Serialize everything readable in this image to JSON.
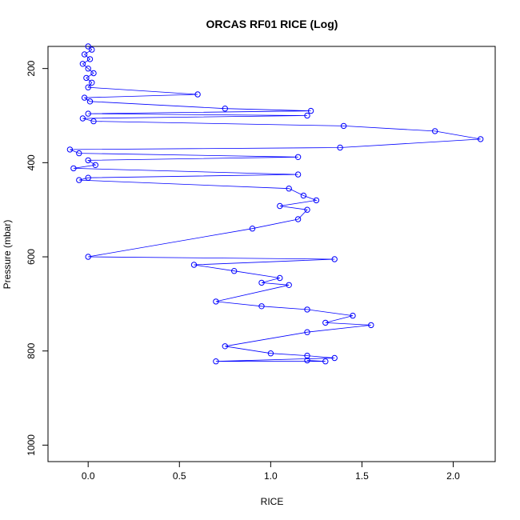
{
  "chart_data": {
    "type": "scatter",
    "title": "ORCAS RF01 RICE (Log)",
    "xlabel": "RICE",
    "ylabel": "Pressure (mbar)",
    "xlim": [
      -0.22,
      2.23
    ],
    "ylim": [
      1035,
      153
    ],
    "y_reversed": true,
    "x_ticks": [
      0.0,
      0.5,
      1.0,
      1.5,
      2.0
    ],
    "x_tick_labels": [
      "0.0",
      "0.5",
      "1.0",
      "1.5",
      "2.0"
    ],
    "y_ticks": [
      200,
      400,
      600,
      800,
      1000
    ],
    "y_tick_labels": [
      "200",
      "400",
      "600",
      "800",
      "1000"
    ],
    "grid": false,
    "legend": "none",
    "marker": "open-circle",
    "line_style": "overplotted line and points",
    "color": "#0000ff",
    "series": [
      {
        "values": [
          [
            0.0,
            153
          ],
          [
            0.02,
            160
          ],
          [
            -0.02,
            170
          ],
          [
            0.01,
            180
          ],
          [
            -0.03,
            190
          ],
          [
            0.0,
            200
          ],
          [
            0.03,
            210
          ],
          [
            -0.01,
            220
          ],
          [
            0.02,
            230
          ],
          [
            0.0,
            240
          ],
          [
            0.6,
            255
          ],
          [
            -0.02,
            262
          ],
          [
            0.01,
            270
          ],
          [
            0.75,
            285
          ],
          [
            1.22,
            290
          ],
          [
            0.0,
            296
          ],
          [
            1.2,
            300
          ],
          [
            -0.03,
            306
          ],
          [
            0.03,
            312
          ],
          [
            1.4,
            322
          ],
          [
            1.9,
            333
          ],
          [
            2.15,
            350
          ],
          [
            1.38,
            368
          ],
          [
            -0.1,
            372
          ],
          [
            -0.05,
            380
          ],
          [
            1.15,
            388
          ],
          [
            0.0,
            395
          ],
          [
            0.04,
            405
          ],
          [
            -0.08,
            412
          ],
          [
            1.15,
            425
          ],
          [
            0.0,
            432
          ],
          [
            -0.05,
            437
          ],
          [
            1.1,
            455
          ],
          [
            1.18,
            470
          ],
          [
            1.25,
            480
          ],
          [
            1.05,
            492
          ],
          [
            1.2,
            500
          ],
          [
            1.15,
            520
          ],
          [
            0.9,
            540
          ],
          [
            0.0,
            600
          ],
          [
            1.35,
            605
          ],
          [
            0.58,
            617
          ],
          [
            0.8,
            630
          ],
          [
            1.05,
            645
          ],
          [
            0.95,
            655
          ],
          [
            1.1,
            660
          ],
          [
            0.7,
            695
          ],
          [
            0.95,
            705
          ],
          [
            1.2,
            712
          ],
          [
            1.45,
            725
          ],
          [
            1.3,
            740
          ],
          [
            1.55,
            745
          ],
          [
            1.2,
            760
          ],
          [
            0.75,
            790
          ],
          [
            1.0,
            805
          ],
          [
            1.2,
            810
          ],
          [
            1.35,
            815
          ],
          [
            0.7,
            822
          ],
          [
            1.3,
            822
          ],
          [
            1.2,
            820
          ]
        ]
      }
    ]
  }
}
